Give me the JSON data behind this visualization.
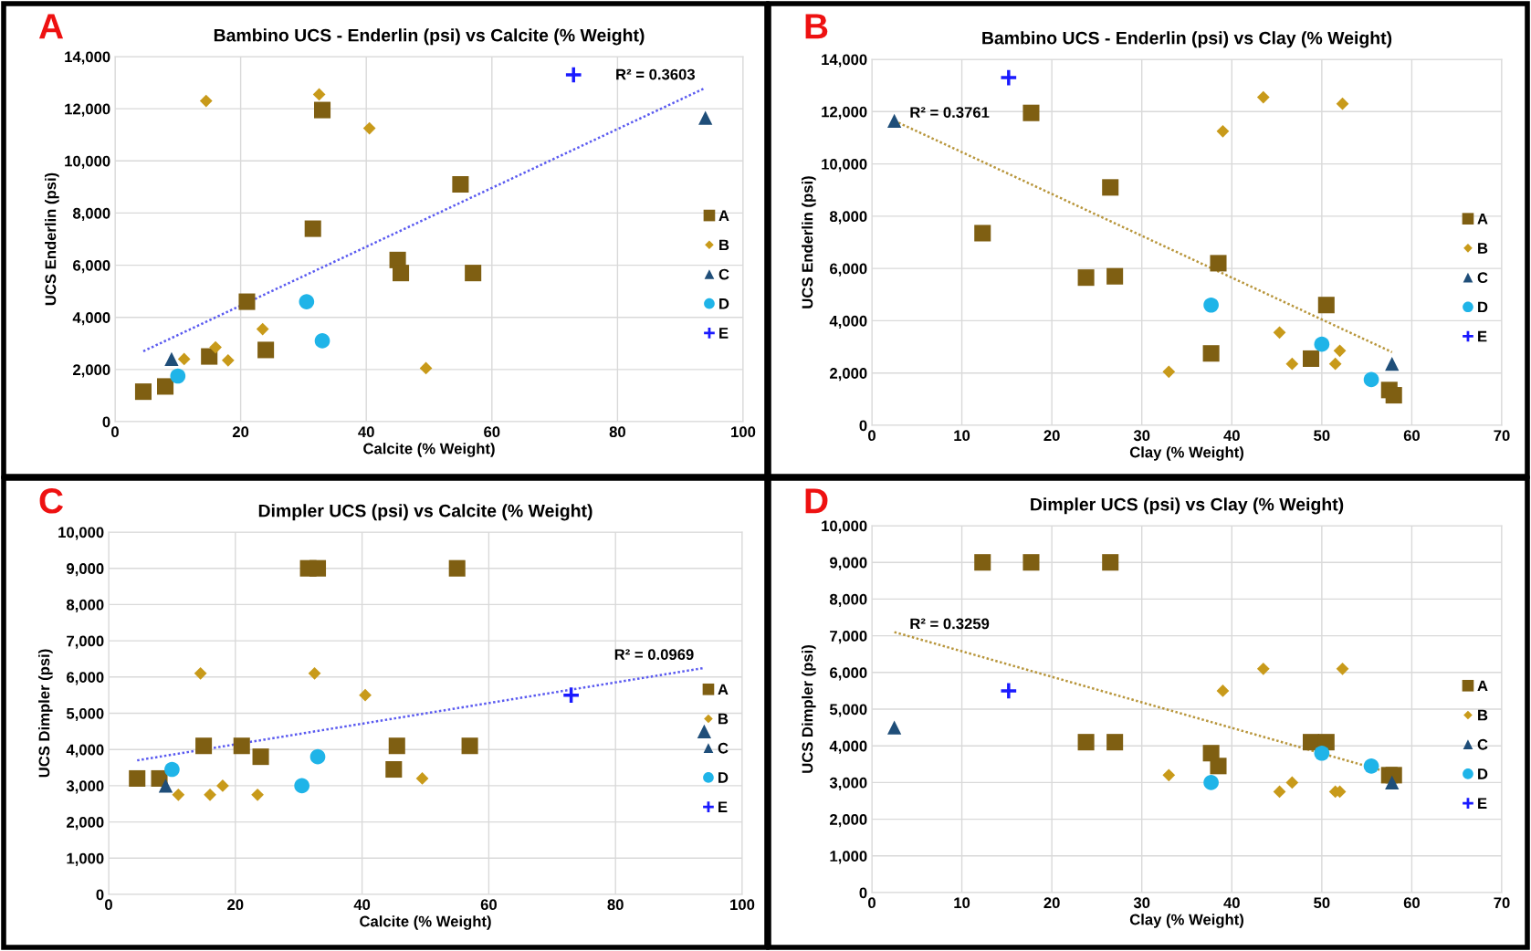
{
  "chart_data": [
    {
      "type": "scatter",
      "title": "Bambino UCS - Enderlin (psi) vs Calcite (% Weight)",
      "xlabel": "Calcite (% Weight)",
      "ylabel": "UCS Enderlin (psi)",
      "xlim": [
        0,
        100
      ],
      "xticks": [
        0,
        20,
        40,
        60,
        80,
        100
      ],
      "ylim": [
        0,
        14000
      ],
      "yticks": [
        0,
        {
          "value": 2000,
          "label": "2,000"
        },
        {
          "value": 4000,
          "label": "4,000"
        },
        {
          "value": 6000,
          "label": "6,000"
        },
        {
          "value": 8000,
          "label": "8,000"
        },
        {
          "value": 10000,
          "label": "10,000"
        },
        {
          "value": 12000,
          "label": "12,000"
        },
        {
          "value": 14000,
          "label": "14,000"
        }
      ],
      "grid": true,
      "legend": "right",
      "annotations": [
        "A",
        "R² = 0.3603"
      ],
      "series": [
        {
          "name": "A",
          "color": "#7f5f12",
          "marker": "square",
          "x": [
            4.5,
            8,
            15,
            21,
            24,
            31.5,
            33,
            45,
            45.5,
            55,
            57
          ],
          "values": [
            1150,
            1350,
            2500,
            4600,
            2750,
            7400,
            11950,
            6200,
            5700,
            9100,
            5700
          ]
        },
        {
          "name": "B",
          "color": "#c89a1a",
          "marker": "diamond",
          "x": [
            14.5,
            32.5,
            40.5,
            11,
            16,
            18,
            23.5,
            49.5
          ],
          "values": [
            12300,
            12550,
            11250,
            2400,
            2850,
            2350,
            3550,
            2050
          ]
        },
        {
          "name": "C",
          "color": "#1f4e79",
          "marker": "triangle",
          "x": [
            9,
            94
          ],
          "values": [
            2400,
            11650
          ]
        },
        {
          "name": "D",
          "color": "#1fb4e8",
          "marker": "circle",
          "x": [
            10,
            30.5,
            33
          ],
          "values": [
            1750,
            4600,
            3100
          ]
        },
        {
          "name": "E",
          "color": "#1a1aff",
          "marker": "cross",
          "x": [
            73
          ],
          "values": [
            13300
          ]
        },
        {
          "type": "line",
          "color": "#5b5bf0",
          "line_style": "dotted",
          "marker": "none",
          "x": [
            4.5,
            94
          ],
          "values": [
            2700,
            12800
          ]
        }
      ]
    },
    {
      "type": "scatter",
      "title": "Bambino UCS - Enderlin (psi) vs Clay (% Weight)",
      "xlabel": "Clay (% Weight)",
      "ylabel": "UCS Enderlin (psi)",
      "xlim": [
        0,
        70
      ],
      "xticks": [
        0,
        10,
        20,
        30,
        40,
        50,
        60,
        70
      ],
      "ylim": [
        0,
        14000
      ],
      "yticks": [
        0,
        {
          "value": 2000,
          "label": "2,000"
        },
        {
          "value": 4000,
          "label": "4,000"
        },
        {
          "value": 6000,
          "label": "6,000"
        },
        {
          "value": 8000,
          "label": "8,000"
        },
        {
          "value": 10000,
          "label": "10,000"
        },
        {
          "value": 12000,
          "label": "12,000"
        },
        {
          "value": 14000,
          "label": "14,000"
        }
      ],
      "grid": true,
      "legend": "right",
      "annotations": [
        "B",
        "R² = 0.3761"
      ],
      "series": [
        {
          "name": "A",
          "color": "#7f5f12",
          "marker": "square",
          "x": [
            12.3,
            17.7,
            23.8,
            26.5,
            27,
            37.7,
            38.5,
            48.8,
            50.5,
            57.5,
            58
          ],
          "values": [
            7350,
            11950,
            5650,
            9100,
            5700,
            2750,
            6200,
            2550,
            4600,
            1350,
            1150
          ]
        },
        {
          "name": "B",
          "color": "#c89a1a",
          "marker": "diamond",
          "x": [
            33,
            39,
            43.5,
            45.3,
            46.7,
            51.5,
            52,
            52.3
          ],
          "values": [
            2050,
            11250,
            12550,
            3550,
            2350,
            2350,
            2850,
            12300
          ]
        },
        {
          "name": "C",
          "color": "#1f4e79",
          "marker": "triangle",
          "x": [
            2.5,
            57.8
          ],
          "values": [
            11650,
            2350
          ]
        },
        {
          "name": "D",
          "color": "#1fb4e8",
          "marker": "circle",
          "x": [
            37.7,
            50,
            55.5
          ],
          "values": [
            4600,
            3100,
            1750
          ]
        },
        {
          "name": "E",
          "color": "#1a1aff",
          "marker": "cross",
          "x": [
            15.2
          ],
          "values": [
            13300
          ]
        },
        {
          "type": "line",
          "color": "#b8963c",
          "line_style": "dotted",
          "marker": "none",
          "x": [
            2.5,
            57.8
          ],
          "values": [
            11650,
            2800
          ]
        }
      ]
    },
    {
      "type": "scatter",
      "title": "Dimpler UCS (psi) vs Calcite (% Weight)",
      "xlabel": "Calcite (% Weight)",
      "ylabel": "UCS Dimpler (psi)",
      "xlim": [
        0,
        100
      ],
      "xticks": [
        0,
        20,
        40,
        60,
        80,
        100
      ],
      "ylim": [
        0,
        10000
      ],
      "yticks": [
        0,
        {
          "value": 1000,
          "label": "1,000"
        },
        {
          "value": 2000,
          "label": "2,000"
        },
        {
          "value": 3000,
          "label": "3,000"
        },
        {
          "value": 4000,
          "label": "4,000"
        },
        {
          "value": 5000,
          "label": "5,000"
        },
        {
          "value": 6000,
          "label": "6,000"
        },
        {
          "value": 7000,
          "label": "7,000"
        },
        {
          "value": 8000,
          "label": "8,000"
        },
        {
          "value": 9000,
          "label": "9,000"
        },
        {
          "value": 10000,
          "label": "10,000"
        }
      ],
      "grid": true,
      "legend": "right",
      "annotations": [
        "C",
        "R² = 0.0969"
      ],
      "series": [
        {
          "name": "A",
          "color": "#7f5f12",
          "marker": "square",
          "x": [
            4.5,
            8,
            15,
            21,
            24,
            31.5,
            33,
            45,
            45.5,
            55,
            57
          ],
          "values": [
            3200,
            3200,
            4100,
            4100,
            3800,
            9000,
            9000,
            3450,
            4100,
            9000,
            4100
          ]
        },
        {
          "name": "B",
          "color": "#c89a1a",
          "marker": "diamond",
          "x": [
            14.5,
            32.5,
            40.5,
            11,
            16,
            18,
            23.5,
            49.5
          ],
          "values": [
            6100,
            6100,
            5500,
            2750,
            2750,
            3000,
            2750,
            3200
          ]
        },
        {
          "name": "C",
          "color": "#1f4e79",
          "marker": "triangle",
          "x": [
            9,
            94
          ],
          "values": [
            3000,
            4500
          ]
        },
        {
          "name": "D",
          "color": "#1fb4e8",
          "marker": "circle",
          "x": [
            10,
            30.5,
            33
          ],
          "values": [
            3450,
            3000,
            3800
          ]
        },
        {
          "name": "E",
          "color": "#1a1aff",
          "marker": "cross",
          "x": [
            73
          ],
          "values": [
            5500
          ]
        },
        {
          "type": "line",
          "color": "#5b5bf0",
          "line_style": "dotted",
          "marker": "none",
          "x": [
            4.5,
            94
          ],
          "values": [
            3700,
            6250
          ]
        }
      ]
    },
    {
      "type": "scatter",
      "title": "Dimpler UCS (psi) vs Clay (% Weight)",
      "xlabel": "Clay (% Weight)",
      "ylabel": "UCS Dimpler (psi)",
      "xlim": [
        0,
        70
      ],
      "xticks": [
        0,
        10,
        20,
        30,
        40,
        50,
        60,
        70
      ],
      "ylim": [
        0,
        10000
      ],
      "yticks": [
        0,
        {
          "value": 1000,
          "label": "1,000"
        },
        {
          "value": 2000,
          "label": "2,000"
        },
        {
          "value": 3000,
          "label": "3,000"
        },
        {
          "value": 4000,
          "label": "4,000"
        },
        {
          "value": 5000,
          "label": "5,000"
        },
        {
          "value": 6000,
          "label": "6,000"
        },
        {
          "value": 7000,
          "label": "7,000"
        },
        {
          "value": 8000,
          "label": "8,000"
        },
        {
          "value": 9000,
          "label": "9,000"
        },
        {
          "value": 10000,
          "label": "10,000"
        }
      ],
      "grid": true,
      "legend": "right",
      "annotations": [
        "D",
        "R² = 0.3259"
      ],
      "series": [
        {
          "name": "A",
          "color": "#7f5f12",
          "marker": "square",
          "x": [
            12.3,
            17.7,
            23.8,
            26.5,
            27,
            37.7,
            38.5,
            48.8,
            50.5,
            57.5,
            58
          ],
          "values": [
            9000,
            9000,
            4100,
            9000,
            4100,
            3800,
            3450,
            4100,
            4100,
            3200,
            3200
          ]
        },
        {
          "name": "B",
          "color": "#c89a1a",
          "marker": "diamond",
          "x": [
            33,
            39,
            43.5,
            45.3,
            46.7,
            51.5,
            52,
            52.3
          ],
          "values": [
            3200,
            5500,
            6100,
            2750,
            3000,
            2750,
            2750,
            6100
          ]
        },
        {
          "name": "C",
          "color": "#1f4e79",
          "marker": "triangle",
          "x": [
            2.5,
            57.8
          ],
          "values": [
            4500,
            3000
          ]
        },
        {
          "name": "D",
          "color": "#1fb4e8",
          "marker": "circle",
          "x": [
            37.7,
            50,
            55.5
          ],
          "values": [
            3000,
            3800,
            3450
          ]
        },
        {
          "name": "E",
          "color": "#1a1aff",
          "marker": "cross",
          "x": [
            15.2
          ],
          "values": [
            5500
          ]
        },
        {
          "type": "line",
          "color": "#b8963c",
          "line_style": "dotted",
          "marker": "none",
          "x": [
            2.5,
            57.8
          ],
          "values": [
            7100,
            3250
          ]
        }
      ]
    }
  ]
}
